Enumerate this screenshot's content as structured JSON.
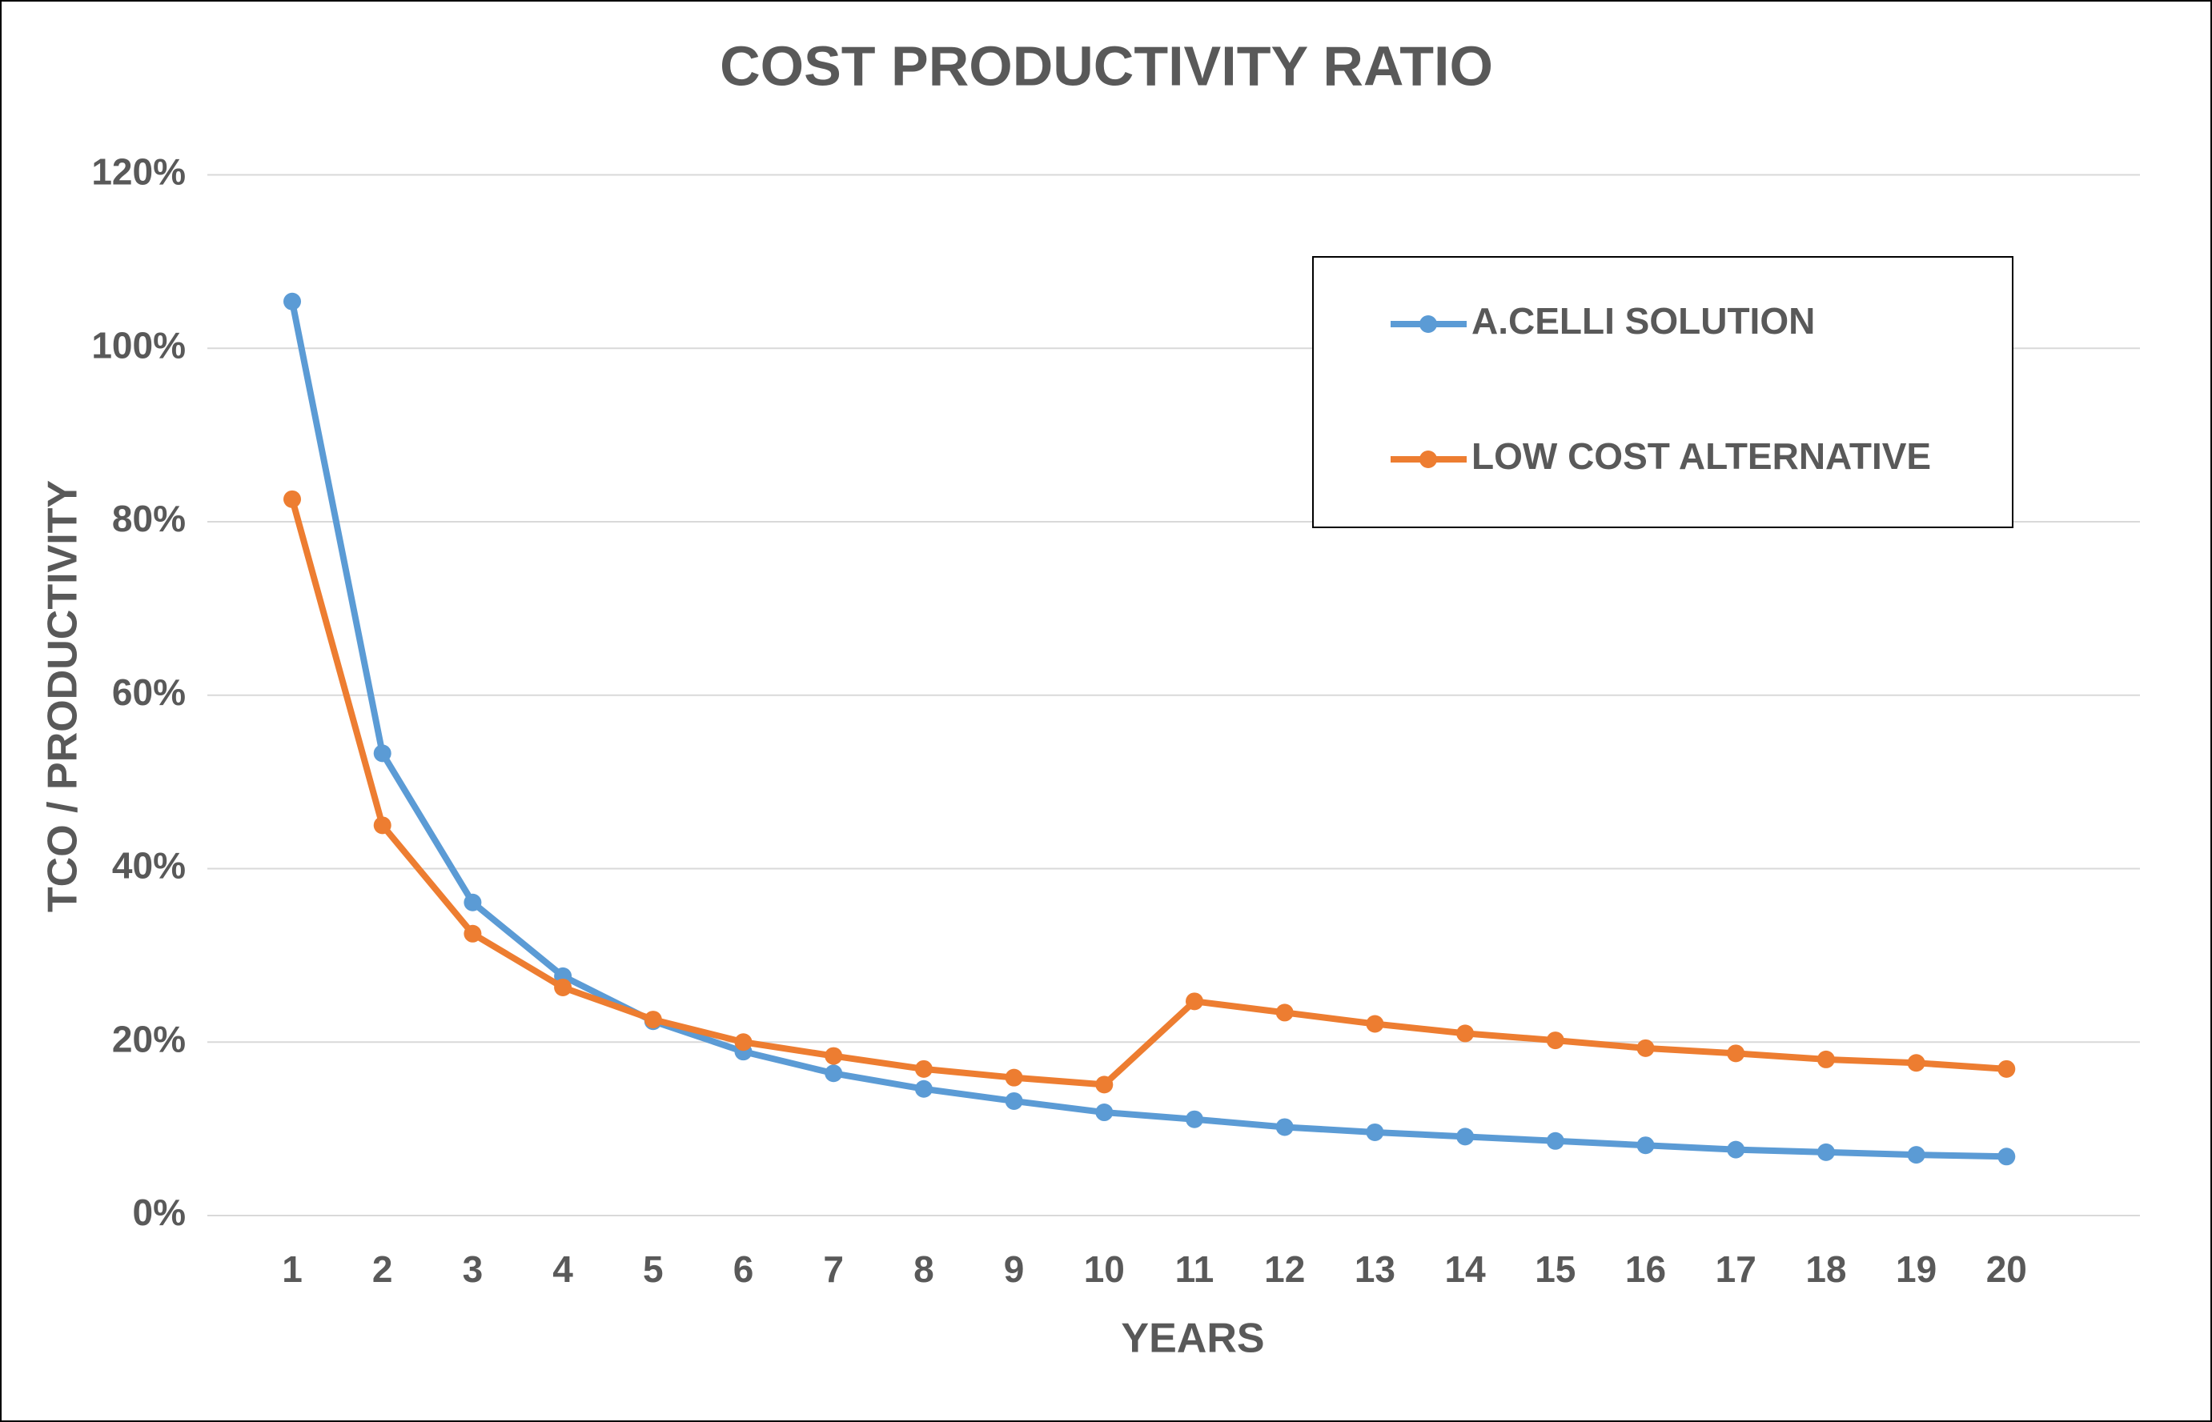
{
  "chart_data": {
    "type": "line",
    "title": "COST PRODUCTIVITY RATIO",
    "x_label": "YEARS",
    "y_label": "TCO / PRODUCTIVITY",
    "categories": [
      "1",
      "2",
      "3",
      "4",
      "5",
      "6",
      "7",
      "8",
      "9",
      "10",
      "11",
      "12",
      "13",
      "14",
      "15",
      "16",
      "17",
      "18",
      "19",
      "20"
    ],
    "series": [
      {
        "name": "A.CELLI SOLUTION",
        "color": "#5b9bd5",
        "values": [
          105.4,
          53.3,
          36.1,
          27.6,
          22.4,
          18.9,
          16.4,
          14.6,
          13.2,
          11.9,
          11.1,
          10.2,
          9.6,
          9.1,
          8.6,
          8.1,
          7.6,
          7.3,
          7.0,
          6.8
        ]
      },
      {
        "name": "LOW COST ALTERNATIVE",
        "color": "#ed7d31",
        "values": [
          82.6,
          45.0,
          32.5,
          26.3,
          22.6,
          20.0,
          18.4,
          16.9,
          15.9,
          15.1,
          24.7,
          23.4,
          22.1,
          21.0,
          20.2,
          19.3,
          18.7,
          18.0,
          17.6,
          16.9
        ]
      }
    ],
    "ylim": [
      0,
      120
    ],
    "yticks": [
      {
        "value": 0,
        "label": "0%"
      },
      {
        "value": 20,
        "label": "20%"
      },
      {
        "value": 40,
        "label": "40%"
      },
      {
        "value": 60,
        "label": "60%"
      },
      {
        "value": 80,
        "label": "80%"
      },
      {
        "value": 100,
        "label": "100%"
      },
      {
        "value": 120,
        "label": "120%"
      }
    ],
    "grid": true,
    "legend": "top-right"
  }
}
